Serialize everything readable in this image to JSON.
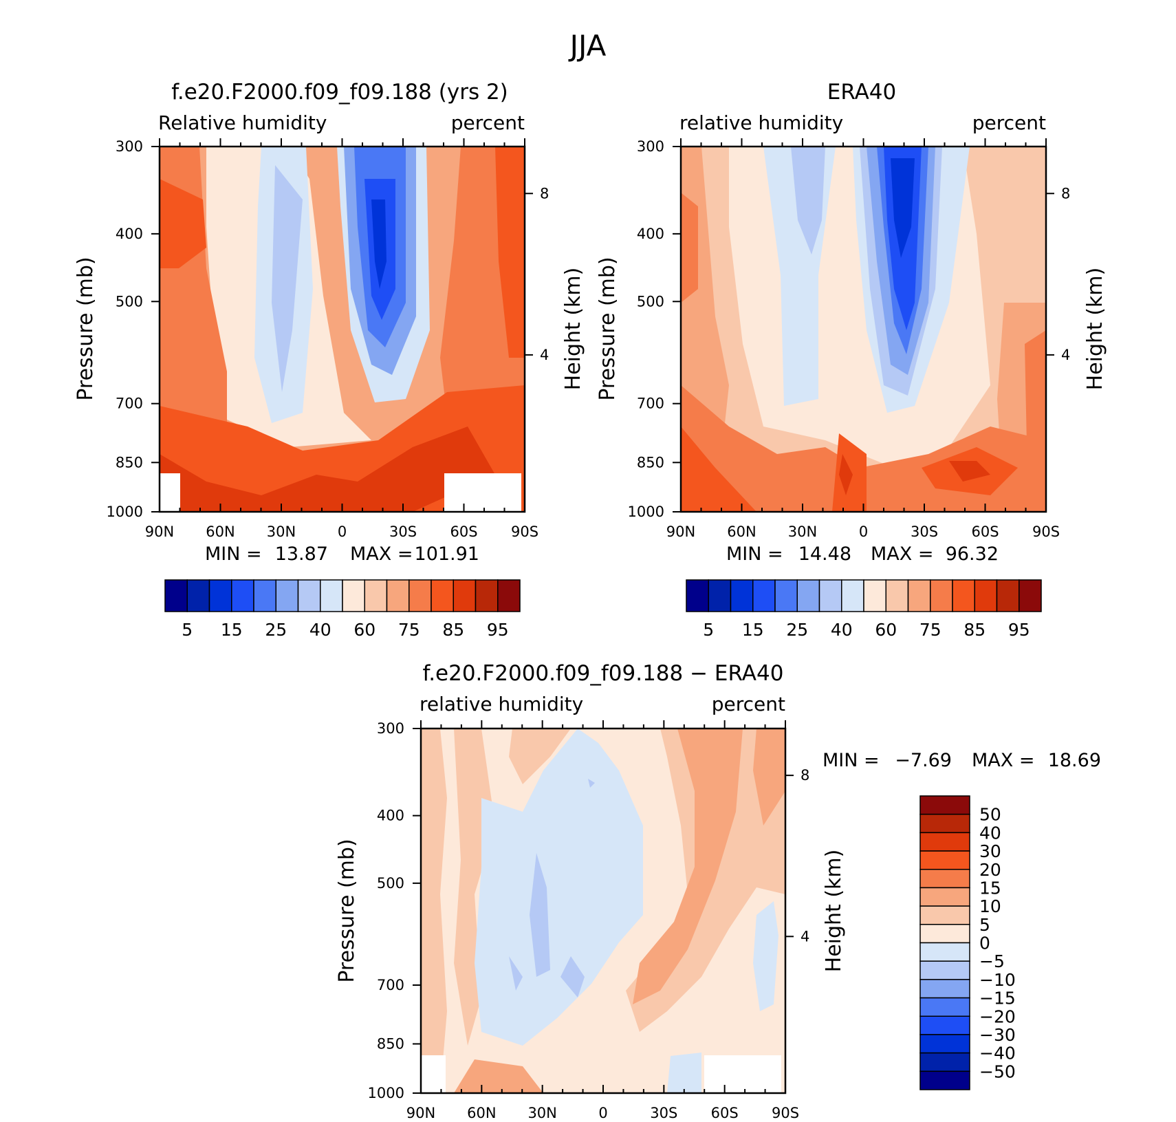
{
  "title": "JJA",
  "chart_data": [
    {
      "type": "heatmap",
      "name": "model",
      "title": "f.e20.F2000.f09_f09.188 (yrs 2)",
      "left_label": "Relative humidity",
      "right_label": "percent",
      "ylabel": "Pressure (mb)",
      "y2label": "Height (km)",
      "x_ticks": [
        "90N",
        "60N",
        "30N",
        "0",
        "30S",
        "60S",
        "90S"
      ],
      "x_range": [
        90,
        -90
      ],
      "y_ticks": [
        "300",
        "400",
        "500",
        "700",
        "850",
        "1000"
      ],
      "y_range": [
        300,
        1000
      ],
      "y2_ticks": [
        "8",
        "4"
      ],
      "min_label": "MIN =",
      "min_value": "13.87",
      "max_label": "MAX =",
      "max_value": "101.91",
      "colorbar": {
        "orientation": "horizontal",
        "labels": [
          "5",
          "15",
          "25",
          "40",
          "60",
          "75",
          "85",
          "95"
        ]
      }
    },
    {
      "type": "heatmap",
      "name": "obs",
      "title": "ERA40",
      "left_label": "relative humidity",
      "right_label": "percent",
      "ylabel": "Pressure (mb)",
      "y2label": "Height (km)",
      "x_ticks": [
        "90N",
        "60N",
        "30N",
        "0",
        "30S",
        "60S",
        "90S"
      ],
      "x_range": [
        90,
        -90
      ],
      "y_ticks": [
        "300",
        "400",
        "500",
        "700",
        "850",
        "1000"
      ],
      "y_range": [
        300,
        1000
      ],
      "y2_ticks": [
        "8",
        "4"
      ],
      "min_label": "MIN =",
      "min_value": "14.48",
      "max_label": "MAX =",
      "max_value": "96.32",
      "colorbar": {
        "orientation": "horizontal",
        "labels": [
          "5",
          "15",
          "25",
          "40",
          "60",
          "75",
          "85",
          "95"
        ]
      }
    },
    {
      "type": "heatmap",
      "name": "diff",
      "title": "f.e20.F2000.f09_f09.188 − ERA40",
      "left_label": "relative humidity",
      "right_label": "percent",
      "ylabel": "Pressure (mb)",
      "y2label": "Height (km)",
      "x_ticks": [
        "90N",
        "60N",
        "30N",
        "0",
        "30S",
        "60S",
        "90S"
      ],
      "x_range": [
        90,
        -90
      ],
      "y_ticks": [
        "300",
        "400",
        "500",
        "700",
        "850",
        "1000"
      ],
      "y_range": [
        300,
        1000
      ],
      "y2_ticks": [
        "8",
        "4"
      ],
      "min_label": "MIN =",
      "min_value": "−7.69",
      "max_label": "MAX =",
      "max_value": "18.69",
      "colorbar": {
        "orientation": "vertical",
        "labels": [
          "50",
          "40",
          "30",
          "20",
          "15",
          "10",
          "5",
          "0",
          "−5",
          "−10",
          "−15",
          "−20",
          "−30",
          "−40",
          "−50"
        ]
      }
    }
  ],
  "colors": {
    "palette": [
      "#00008b",
      "#0022aa",
      "#0033d8",
      "#1e4ef5",
      "#4a78f5",
      "#84a6f2",
      "#b5c9f5",
      "#d6e6f8",
      "#fde9da",
      "#f9c8ab",
      "#f7a67d",
      "#f57c4a",
      "#f4561e",
      "#e03a0c",
      "#b82808",
      "#8b0a0a"
    ],
    "missing": "#ffffff"
  }
}
